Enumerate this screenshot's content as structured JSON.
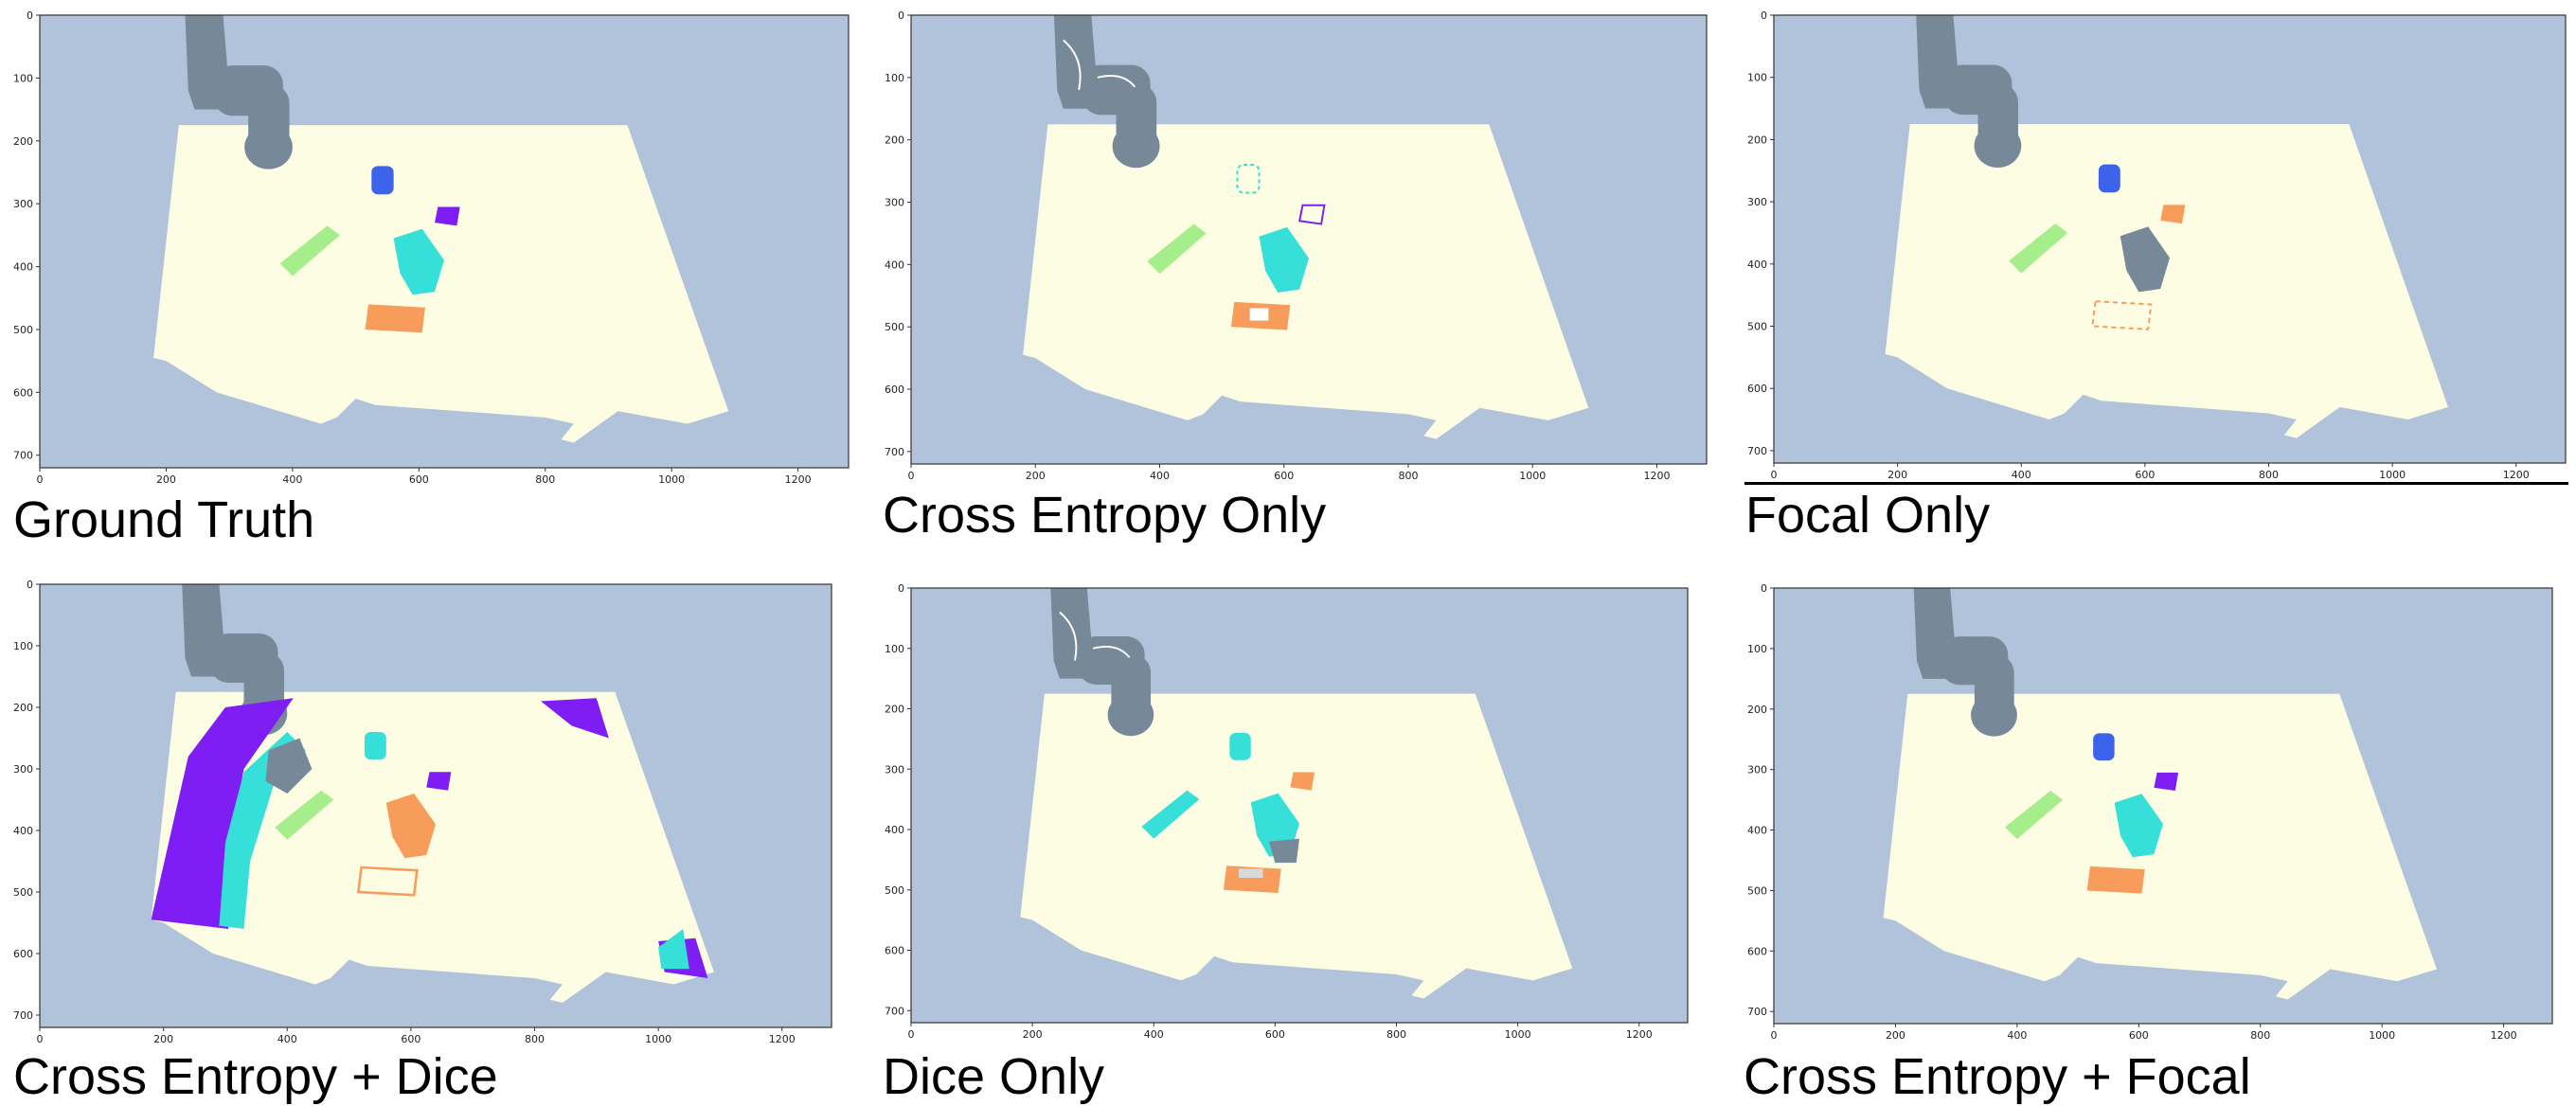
{
  "colors": {
    "background": "#b0c3da",
    "table": "#fdfde3",
    "robot": "#778899",
    "blue": "#3d63ea",
    "purple": "#7e1ef4",
    "green": "#a6ee8c",
    "cyan": "#36e0d8",
    "orange": "#f89c5c",
    "axis": "#333333"
  },
  "axes": {
    "x_ticks": [
      "0",
      "200",
      "400",
      "600",
      "800",
      "1000",
      "1200"
    ],
    "y_ticks": [
      "0",
      "100",
      "200",
      "300",
      "400",
      "500",
      "600",
      "700"
    ]
  },
  "panels": [
    {
      "id": "gt",
      "caption": "Ground Truth",
      "variant": "clean"
    },
    {
      "id": "ce",
      "caption": "Cross Entropy Only",
      "variant": "ce"
    },
    {
      "id": "focal",
      "caption": "Focal Only",
      "variant": "focal"
    },
    {
      "id": "ce_dice",
      "caption": "Cross Entropy + Dice",
      "variant": "ce_dice"
    },
    {
      "id": "dice",
      "caption": "Dice Only",
      "variant": "dice"
    },
    {
      "id": "ce_focal",
      "caption": "Cross Entropy + Focal",
      "variant": "clean"
    }
  ]
}
